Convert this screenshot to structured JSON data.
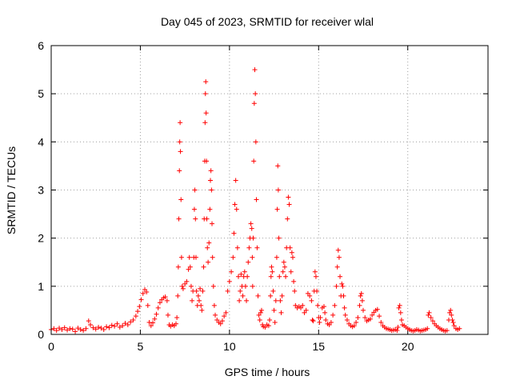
{
  "chart_data": {
    "type": "scatter",
    "title": "Day 045 of 2023, SRMTID for receiver wlal",
    "xlabel": "GPS time / hours",
    "ylabel": "SRMTID / TECUs",
    "xlim": [
      0,
      24.5
    ],
    "ylim": [
      0,
      6
    ],
    "xticks": [
      0,
      5,
      10,
      15,
      20
    ],
    "yticks": [
      0,
      1,
      2,
      3,
      4,
      5,
      6
    ],
    "grid": true,
    "marker": "+",
    "color": "#ff0000",
    "series": [
      {
        "name": "SRMTID",
        "points": [
          [
            0.0,
            0.1
          ],
          [
            0.15,
            0.12
          ],
          [
            0.3,
            0.08
          ],
          [
            0.45,
            0.13
          ],
          [
            0.6,
            0.1
          ],
          [
            0.75,
            0.14
          ],
          [
            0.9,
            0.09
          ],
          [
            1.05,
            0.12
          ],
          [
            1.2,
            0.11
          ],
          [
            1.35,
            0.06
          ],
          [
            1.5,
            0.13
          ],
          [
            1.65,
            0.1
          ],
          [
            1.8,
            0.08
          ],
          [
            1.95,
            0.12
          ],
          [
            2.1,
            0.28
          ],
          [
            2.2,
            0.2
          ],
          [
            2.35,
            0.14
          ],
          [
            2.5,
            0.11
          ],
          [
            2.65,
            0.15
          ],
          [
            2.8,
            0.13
          ],
          [
            2.95,
            0.1
          ],
          [
            3.1,
            0.16
          ],
          [
            3.25,
            0.14
          ],
          [
            3.4,
            0.19
          ],
          [
            3.55,
            0.17
          ],
          [
            3.7,
            0.22
          ],
          [
            3.85,
            0.15
          ],
          [
            4.0,
            0.18
          ],
          [
            4.15,
            0.23
          ],
          [
            4.3,
            0.2
          ],
          [
            4.45,
            0.26
          ],
          [
            4.6,
            0.3
          ],
          [
            4.75,
            0.38
          ],
          [
            4.85,
            0.48
          ],
          [
            4.95,
            0.58
          ],
          [
            5.05,
            0.72
          ],
          [
            5.15,
            0.85
          ],
          [
            5.25,
            0.93
          ],
          [
            5.35,
            0.88
          ],
          [
            5.42,
            0.6
          ],
          [
            5.5,
            0.25
          ],
          [
            5.6,
            0.18
          ],
          [
            5.7,
            0.24
          ],
          [
            5.8,
            0.32
          ],
          [
            5.9,
            0.42
          ],
          [
            6.0,
            0.55
          ],
          [
            6.1,
            0.66
          ],
          [
            6.2,
            0.72
          ],
          [
            6.3,
            0.76
          ],
          [
            6.4,
            0.78
          ],
          [
            6.5,
            0.7
          ],
          [
            6.55,
            0.4
          ],
          [
            6.62,
            0.2
          ],
          [
            6.7,
            0.17
          ],
          [
            6.8,
            0.2
          ],
          [
            6.9,
            0.18
          ],
          [
            7.0,
            0.22
          ],
          [
            7.05,
            0.35
          ],
          [
            7.1,
            0.8
          ],
          [
            7.13,
            1.4
          ],
          [
            7.16,
            2.4
          ],
          [
            7.19,
            3.4
          ],
          [
            7.21,
            4.0
          ],
          [
            7.23,
            4.4
          ],
          [
            7.25,
            3.8
          ],
          [
            7.28,
            2.8
          ],
          [
            7.31,
            1.6
          ],
          [
            7.35,
            1.0
          ],
          [
            7.4,
            0.95
          ],
          [
            7.5,
            1.05
          ],
          [
            7.6,
            1.1
          ],
          [
            7.7,
            1.35
          ],
          [
            7.75,
            1.6
          ],
          [
            7.8,
            1.4
          ],
          [
            7.85,
            1.0
          ],
          [
            7.9,
            0.7
          ],
          [
            7.95,
            0.9
          ],
          [
            8.0,
            1.6
          ],
          [
            8.03,
            2.6
          ],
          [
            8.06,
            3.0
          ],
          [
            8.09,
            2.4
          ],
          [
            8.12,
            1.6
          ],
          [
            8.15,
            0.9
          ],
          [
            8.2,
            0.6
          ],
          [
            8.25,
            0.8
          ],
          [
            8.3,
            0.7
          ],
          [
            8.35,
            0.95
          ],
          [
            8.4,
            0.6
          ],
          [
            8.45,
            0.5
          ],
          [
            8.5,
            0.9
          ],
          [
            8.55,
            1.4
          ],
          [
            8.58,
            2.4
          ],
          [
            8.61,
            3.6
          ],
          [
            8.63,
            4.4
          ],
          [
            8.65,
            5.0
          ],
          [
            8.67,
            5.25
          ],
          [
            8.69,
            4.6
          ],
          [
            8.71,
            3.6
          ],
          [
            8.73,
            2.4
          ],
          [
            8.76,
            1.8
          ],
          [
            8.8,
            1.5
          ],
          [
            8.85,
            1.9
          ],
          [
            8.9,
            2.6
          ],
          [
            8.93,
            3.2
          ],
          [
            8.96,
            3.4
          ],
          [
            8.99,
            3.0
          ],
          [
            9.02,
            2.3
          ],
          [
            9.05,
            1.6
          ],
          [
            9.1,
            1.0
          ],
          [
            9.15,
            0.6
          ],
          [
            9.2,
            0.4
          ],
          [
            9.3,
            0.3
          ],
          [
            9.4,
            0.25
          ],
          [
            9.5,
            0.22
          ],
          [
            9.6,
            0.28
          ],
          [
            9.7,
            0.38
          ],
          [
            9.8,
            0.45
          ],
          [
            9.9,
            0.9
          ],
          [
            10.0,
            1.1
          ],
          [
            10.1,
            1.3
          ],
          [
            10.2,
            1.6
          ],
          [
            10.25,
            2.1
          ],
          [
            10.3,
            2.7
          ],
          [
            10.35,
            3.2
          ],
          [
            10.4,
            2.6
          ],
          [
            10.45,
            1.8
          ],
          [
            10.5,
            1.2
          ],
          [
            10.55,
            0.7
          ],
          [
            10.6,
            0.9
          ],
          [
            10.65,
            1.25
          ],
          [
            10.7,
            1.0
          ],
          [
            10.75,
            0.8
          ],
          [
            10.8,
            1.2
          ],
          [
            10.85,
            1.3
          ],
          [
            10.9,
            1.0
          ],
          [
            10.95,
            0.7
          ],
          [
            11.0,
            1.2
          ],
          [
            11.05,
            1.5
          ],
          [
            11.1,
            1.8
          ],
          [
            11.15,
            2.0
          ],
          [
            11.2,
            2.3
          ],
          [
            11.25,
            2.2
          ],
          [
            11.28,
            1.6
          ],
          [
            11.3,
            1.0
          ],
          [
            11.33,
            2.0
          ],
          [
            11.36,
            3.6
          ],
          [
            11.39,
            4.8
          ],
          [
            11.42,
            5.5
          ],
          [
            11.45,
            5.0
          ],
          [
            11.48,
            4.0
          ],
          [
            11.51,
            2.8
          ],
          [
            11.55,
            1.8
          ],
          [
            11.6,
            0.8
          ],
          [
            11.65,
            0.4
          ],
          [
            11.7,
            0.3
          ],
          [
            11.75,
            0.45
          ],
          [
            11.8,
            0.5
          ],
          [
            11.85,
            0.2
          ],
          [
            11.9,
            0.16
          ],
          [
            12.0,
            0.15
          ],
          [
            12.1,
            0.2
          ],
          [
            12.2,
            0.18
          ],
          [
            12.25,
            0.3
          ],
          [
            12.3,
            0.8
          ],
          [
            12.33,
            1.2
          ],
          [
            12.36,
            1.4
          ],
          [
            12.4,
            1.3
          ],
          [
            12.45,
            0.9
          ],
          [
            12.5,
            0.5
          ],
          [
            12.55,
            0.25
          ],
          [
            12.6,
            0.7
          ],
          [
            12.65,
            1.6
          ],
          [
            12.68,
            2.6
          ],
          [
            12.71,
            3.5
          ],
          [
            12.74,
            3.0
          ],
          [
            12.77,
            2.0
          ],
          [
            12.8,
            1.2
          ],
          [
            12.85,
            0.7
          ],
          [
            12.9,
            0.45
          ],
          [
            12.95,
            0.8
          ],
          [
            13.0,
            1.3
          ],
          [
            13.05,
            1.5
          ],
          [
            13.1,
            1.4
          ],
          [
            13.15,
            1.2
          ],
          [
            13.2,
            1.8
          ],
          [
            13.25,
            2.4
          ],
          [
            13.3,
            2.85
          ],
          [
            13.35,
            2.7
          ],
          [
            13.4,
            1.8
          ],
          [
            13.45,
            1.3
          ],
          [
            13.5,
            1.7
          ],
          [
            13.55,
            1.6
          ],
          [
            13.6,
            1.1
          ],
          [
            13.65,
            0.9
          ],
          [
            13.7,
            0.6
          ],
          [
            13.8,
            0.55
          ],
          [
            13.9,
            0.58
          ],
          [
            14.0,
            0.55
          ],
          [
            14.1,
            0.6
          ],
          [
            14.2,
            0.45
          ],
          [
            14.3,
            0.5
          ],
          [
            14.4,
            0.85
          ],
          [
            14.5,
            0.8
          ],
          [
            14.6,
            0.7
          ],
          [
            14.65,
            0.3
          ],
          [
            14.7,
            0.28
          ],
          [
            14.75,
            0.9
          ],
          [
            14.8,
            1.3
          ],
          [
            14.85,
            1.2
          ],
          [
            14.9,
            0.9
          ],
          [
            14.95,
            0.6
          ],
          [
            15.0,
            0.35
          ],
          [
            15.05,
            0.25
          ],
          [
            15.1,
            0.35
          ],
          [
            15.2,
            0.55
          ],
          [
            15.3,
            0.58
          ],
          [
            15.35,
            0.45
          ],
          [
            15.4,
            0.3
          ],
          [
            15.5,
            0.22
          ],
          [
            15.6,
            0.2
          ],
          [
            15.7,
            0.25
          ],
          [
            15.8,
            0.4
          ],
          [
            15.9,
            0.6
          ],
          [
            16.0,
            1.0
          ],
          [
            16.05,
            1.4
          ],
          [
            16.1,
            1.75
          ],
          [
            16.15,
            1.6
          ],
          [
            16.2,
            1.2
          ],
          [
            16.25,
            0.8
          ],
          [
            16.3,
            1.05
          ],
          [
            16.35,
            1.0
          ],
          [
            16.4,
            0.8
          ],
          [
            16.45,
            0.55
          ],
          [
            16.5,
            0.4
          ],
          [
            16.6,
            0.3
          ],
          [
            16.7,
            0.22
          ],
          [
            16.8,
            0.18
          ],
          [
            16.9,
            0.16
          ],
          [
            17.0,
            0.18
          ],
          [
            17.1,
            0.25
          ],
          [
            17.2,
            0.35
          ],
          [
            17.3,
            0.6
          ],
          [
            17.35,
            0.8
          ],
          [
            17.4,
            0.85
          ],
          [
            17.45,
            0.7
          ],
          [
            17.5,
            0.5
          ],
          [
            17.6,
            0.35
          ],
          [
            17.7,
            0.28
          ],
          [
            17.8,
            0.3
          ],
          [
            17.9,
            0.32
          ],
          [
            18.0,
            0.4
          ],
          [
            18.1,
            0.46
          ],
          [
            18.2,
            0.5
          ],
          [
            18.3,
            0.52
          ],
          [
            18.4,
            0.38
          ],
          [
            18.5,
            0.25
          ],
          [
            18.6,
            0.18
          ],
          [
            18.7,
            0.15
          ],
          [
            18.8,
            0.12
          ],
          [
            18.9,
            0.11
          ],
          [
            19.0,
            0.1
          ],
          [
            19.1,
            0.08
          ],
          [
            19.2,
            0.09
          ],
          [
            19.3,
            0.1
          ],
          [
            19.4,
            0.08
          ],
          [
            19.45,
            0.15
          ],
          [
            19.5,
            0.55
          ],
          [
            19.55,
            0.6
          ],
          [
            19.6,
            0.45
          ],
          [
            19.65,
            0.3
          ],
          [
            19.7,
            0.2
          ],
          [
            19.8,
            0.18
          ],
          [
            19.9,
            0.15
          ],
          [
            20.0,
            0.12
          ],
          [
            20.1,
            0.1
          ],
          [
            20.2,
            0.08
          ],
          [
            20.3,
            0.07
          ],
          [
            20.4,
            0.08
          ],
          [
            20.5,
            0.1
          ],
          [
            20.6,
            0.09
          ],
          [
            20.7,
            0.07
          ],
          [
            20.8,
            0.08
          ],
          [
            20.9,
            0.09
          ],
          [
            21.0,
            0.1
          ],
          [
            21.1,
            0.12
          ],
          [
            21.15,
            0.4
          ],
          [
            21.2,
            0.45
          ],
          [
            21.3,
            0.35
          ],
          [
            21.4,
            0.28
          ],
          [
            21.5,
            0.22
          ],
          [
            21.6,
            0.18
          ],
          [
            21.7,
            0.15
          ],
          [
            21.8,
            0.12
          ],
          [
            21.9,
            0.1
          ],
          [
            22.0,
            0.08
          ],
          [
            22.1,
            0.07
          ],
          [
            22.2,
            0.08
          ],
          [
            22.3,
            0.3
          ],
          [
            22.35,
            0.45
          ],
          [
            22.4,
            0.5
          ],
          [
            22.45,
            0.4
          ],
          [
            22.5,
            0.3
          ],
          [
            22.55,
            0.25
          ],
          [
            22.6,
            0.18
          ],
          [
            22.7,
            0.12
          ],
          [
            22.8,
            0.1
          ],
          [
            22.9,
            0.12
          ]
        ]
      }
    ]
  }
}
